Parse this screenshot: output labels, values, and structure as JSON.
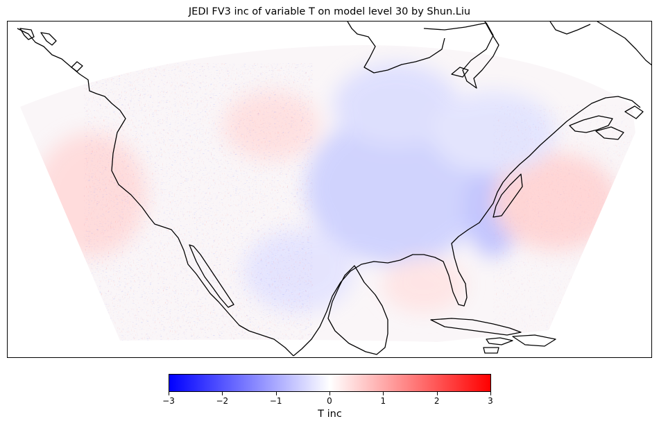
{
  "figure": {
    "title": "JEDI FV3 inc of variable T on model level 30 by Shun.Liu"
  },
  "map": {
    "field": "T inc",
    "projection": "lambert-conformal",
    "region": "North America (CONUS, Mexico, Gulf of Mexico, Caribbean)",
    "coastline_color": "#000000"
  },
  "colorbar": {
    "label": "T inc",
    "colormap": "bwr",
    "vmin": -3,
    "vmax": 3,
    "colors": {
      "low": "#0000ff",
      "mid": "#ffffff",
      "high": "#ff0000"
    },
    "ticks": [
      {
        "value": -3,
        "label": "−3"
      },
      {
        "value": -2,
        "label": "−2"
      },
      {
        "value": -1,
        "label": "−1"
      },
      {
        "value": 0,
        "label": "0"
      },
      {
        "value": 1,
        "label": "1"
      },
      {
        "value": 2,
        "label": "2"
      },
      {
        "value": 3,
        "label": "3"
      }
    ]
  }
}
